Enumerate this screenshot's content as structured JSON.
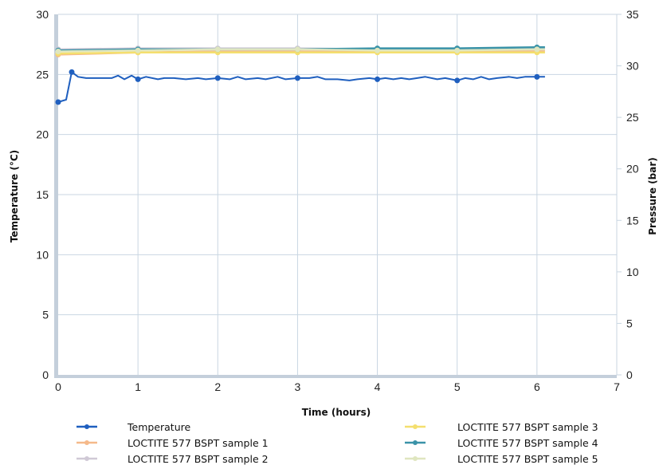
{
  "chart_data": {
    "type": "line",
    "title": "",
    "xlabel": "Time (hours)",
    "ylabel": "Temperature (°C)",
    "y2label": "Pressure (bar)",
    "xlim": [
      0,
      7
    ],
    "ylim": [
      0,
      30
    ],
    "y2lim": [
      0,
      35
    ],
    "x_ticks": [
      "0",
      "1",
      "2",
      "3",
      "4",
      "5",
      "6",
      "7"
    ],
    "y_ticks": [
      "0",
      "5",
      "10",
      "15",
      "20",
      "25",
      "30"
    ],
    "y2_ticks": [
      "0",
      "5",
      "10",
      "15",
      "20",
      "25",
      "30",
      "35"
    ],
    "grid": true,
    "legend_position": "bottom",
    "series": [
      {
        "name": "Temperature",
        "axis": "left",
        "color": "#1f5fbf",
        "x": [
          0,
          0.1,
          0.17,
          0.25,
          0.35,
          0.5,
          0.67,
          0.75,
          0.83,
          0.92,
          1.0,
          1.1,
          1.25,
          1.33,
          1.45,
          1.6,
          1.75,
          1.85,
          2.0,
          2.15,
          2.25,
          2.35,
          2.5,
          2.6,
          2.75,
          2.85,
          3.0,
          3.15,
          3.25,
          3.35,
          3.5,
          3.65,
          3.75,
          3.9,
          4.0,
          4.1,
          4.2,
          4.3,
          4.4,
          4.5,
          4.6,
          4.75,
          4.85,
          5.0,
          5.1,
          5.2,
          5.3,
          5.4,
          5.5,
          5.65,
          5.75,
          5.85,
          6.0,
          6.1
        ],
        "values": [
          22.7,
          22.9,
          25.2,
          24.8,
          24.7,
          24.7,
          24.7,
          24.9,
          24.6,
          24.9,
          24.6,
          24.8,
          24.6,
          24.7,
          24.7,
          24.6,
          24.7,
          24.6,
          24.7,
          24.6,
          24.8,
          24.6,
          24.7,
          24.6,
          24.8,
          24.6,
          24.7,
          24.7,
          24.8,
          24.6,
          24.6,
          24.5,
          24.6,
          24.7,
          24.6,
          24.7,
          24.6,
          24.7,
          24.6,
          24.7,
          24.8,
          24.6,
          24.7,
          24.5,
          24.7,
          24.6,
          24.8,
          24.6,
          24.7,
          24.8,
          24.7,
          24.8,
          24.8,
          24.8
        ],
        "markers_at": [
          0,
          0.17,
          1.0,
          2.0,
          3.0,
          4.0,
          5.0,
          6.0
        ]
      },
      {
        "name": "LOCTITE 577 BSPT sample 1",
        "axis": "right",
        "color": "#f5b98a",
        "x": [
          0,
          1,
          2,
          3,
          4,
          5,
          6,
          6.1
        ],
        "values": [
          31.1,
          31.3,
          31.4,
          31.4,
          31.4,
          31.4,
          31.5,
          31.5
        ]
      },
      {
        "name": "LOCTITE 577 BSPT sample 2",
        "axis": "right",
        "color": "#d0c9d6",
        "x": [
          0,
          1,
          2,
          3,
          4,
          5,
          6,
          6.1
        ],
        "values": [
          31.6,
          31.7,
          31.7,
          31.7,
          31.6,
          31.6,
          31.6,
          31.6
        ]
      },
      {
        "name": "LOCTITE 577 BSPT sample 3",
        "axis": "right",
        "color": "#f4df6e",
        "x": [
          0,
          1,
          2,
          3,
          4,
          5,
          6,
          6.1
        ],
        "values": [
          31.2,
          31.3,
          31.3,
          31.3,
          31.3,
          31.3,
          31.3,
          31.3
        ]
      },
      {
        "name": "LOCTITE 577 BSPT sample 4",
        "axis": "right",
        "color": "#3a93a8",
        "x": [
          0,
          1,
          2,
          3,
          4,
          5,
          6,
          6.1
        ],
        "values": [
          31.5,
          31.6,
          31.6,
          31.6,
          31.7,
          31.7,
          31.8,
          31.8
        ]
      },
      {
        "name": "LOCTITE 577 BSPT sample 5",
        "axis": "right",
        "color": "#dfe6bf",
        "x": [
          0,
          1,
          2,
          3,
          4,
          5,
          6,
          6.1
        ],
        "values": [
          31.4,
          31.5,
          31.6,
          31.6,
          31.5,
          31.5,
          31.6,
          31.6
        ]
      }
    ]
  }
}
